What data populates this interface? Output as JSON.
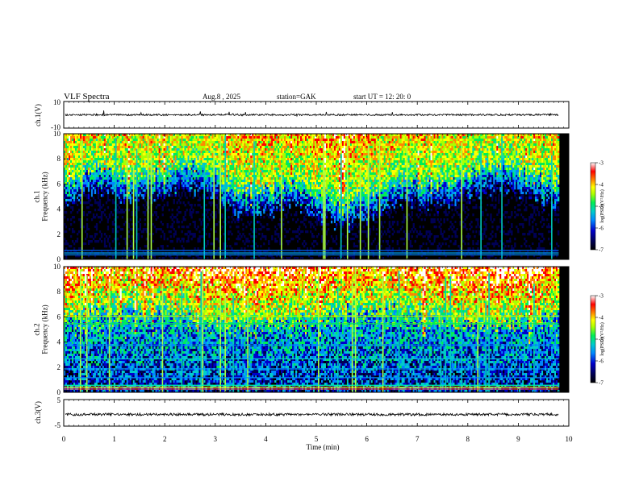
{
  "header": {
    "title": "VLF Spectra",
    "date": "Aug.8  , 2025",
    "station": "station=GAK",
    "start": "start  UT =   12: 20: 0"
  },
  "colors": {
    "background": "#000000",
    "trace": "#000000",
    "colormap": [
      "#000000",
      "#000055",
      "#0000cc",
      "#0088ff",
      "#00cccc",
      "#00ee55",
      "#aaff00",
      "#ffff00",
      "#ff8800",
      "#ff0000",
      "#ffffff"
    ]
  },
  "chart_data": [
    {
      "type": "line",
      "panel": "ch1-waveform",
      "ylabel": "ch.1(V)",
      "ylim": [
        -10,
        10
      ],
      "ytick_labels": [
        "10",
        "-10"
      ],
      "xlim": [
        0,
        10
      ],
      "baseline_value": 0
    },
    {
      "type": "heatmap",
      "panel": "ch1-spectrogram",
      "ylabel": "ch.1\nFrequency  (kHz)",
      "ylim": [
        0,
        10
      ],
      "ytick_labels": [
        "0",
        "2",
        "4",
        "6",
        "8",
        "10"
      ],
      "xlim": [
        0,
        10
      ],
      "colorbar": {
        "label": "log(PSD)(V²/Hz)",
        "range": [
          -7,
          -3
        ],
        "tick_labels": [
          "-3",
          "-4",
          "-5",
          "-6",
          "-7"
        ]
      }
    },
    {
      "type": "heatmap",
      "panel": "ch2-spectrogram",
      "ylabel": "ch.2\nFrequency  (kHz)",
      "ylim": [
        0,
        10
      ],
      "ytick_labels": [
        "0",
        "2",
        "4",
        "6",
        "8",
        "10"
      ],
      "xlim": [
        0,
        10
      ],
      "colorbar": {
        "label": "log(PSD)(V²/Hz)",
        "range": [
          -7,
          -3
        ],
        "tick_labels": [
          "-3",
          "-4",
          "-5",
          "-6",
          "-7"
        ]
      }
    },
    {
      "type": "line",
      "panel": "ch3-waveform",
      "ylabel": "ch.3(V)",
      "ylim": [
        -5,
        5
      ],
      "ytick_labels": [
        "5",
        "-5"
      ],
      "xlim": [
        0,
        10
      ],
      "baseline_value": -0.6
    }
  ],
  "xaxis": {
    "label": "Time  (min)",
    "tick_labels": [
      "0",
      "1",
      "2",
      "3",
      "4",
      "5",
      "6",
      "7",
      "8",
      "9",
      "10"
    ]
  }
}
